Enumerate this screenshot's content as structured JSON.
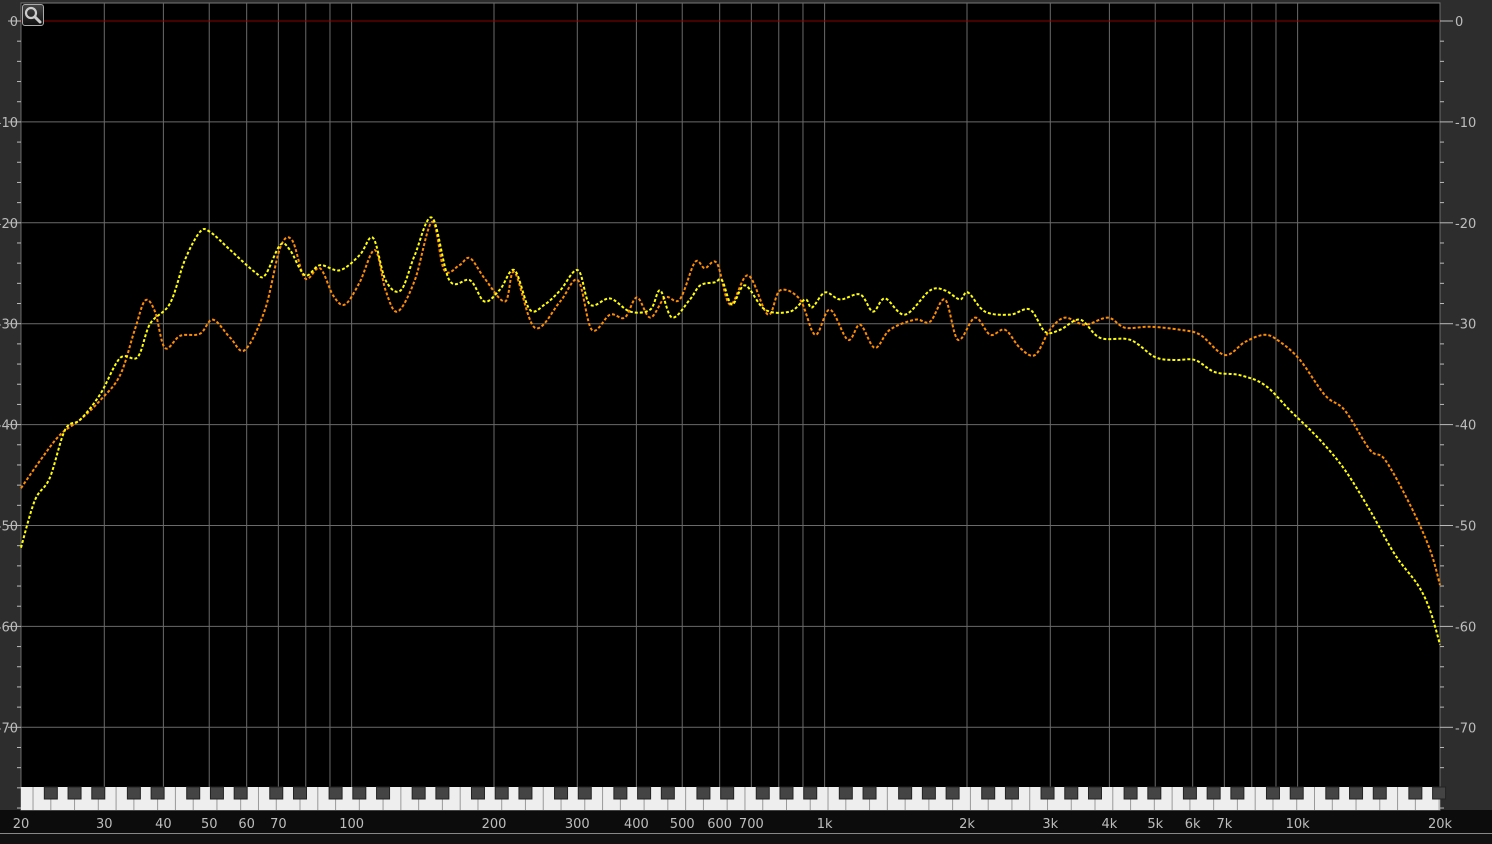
{
  "chart_data": {
    "type": "line",
    "title": "",
    "xlabel": "",
    "ylabel": "",
    "x_scale": "log",
    "xlim": [
      20,
      20000
    ],
    "ylim": [
      -78,
      1
    ],
    "grid": true,
    "reference_line_db": 0,
    "x_ticks": [
      {
        "value": 20,
        "label": "20"
      },
      {
        "value": 30,
        "label": "30"
      },
      {
        "value": 40,
        "label": "40"
      },
      {
        "value": 50,
        "label": "50"
      },
      {
        "value": 60,
        "label": "60"
      },
      {
        "value": 70,
        "label": "70"
      },
      {
        "value": 100,
        "label": "100"
      },
      {
        "value": 200,
        "label": "200"
      },
      {
        "value": 300,
        "label": "300"
      },
      {
        "value": 400,
        "label": "400"
      },
      {
        "value": 500,
        "label": "500"
      },
      {
        "value": 600,
        "label": "600"
      },
      {
        "value": 700,
        "label": "700"
      },
      {
        "value": 1000,
        "label": "1k"
      },
      {
        "value": 2000,
        "label": "2k"
      },
      {
        "value": 3000,
        "label": "3k"
      },
      {
        "value": 4000,
        "label": "4k"
      },
      {
        "value": 5000,
        "label": "5k"
      },
      {
        "value": 6000,
        "label": "6k"
      },
      {
        "value": 7000,
        "label": "7k"
      },
      {
        "value": 10000,
        "label": "10k"
      },
      {
        "value": 20000,
        "label": "20k"
      }
    ],
    "x_grid": [
      20,
      30,
      40,
      50,
      60,
      70,
      80,
      90,
      100,
      200,
      300,
      400,
      500,
      600,
      700,
      800,
      900,
      1000,
      2000,
      3000,
      4000,
      5000,
      6000,
      7000,
      8000,
      9000,
      10000,
      20000
    ],
    "y_ticks": [
      {
        "value": 0,
        "label": "0"
      },
      {
        "value": -10,
        "label": "-10"
      },
      {
        "value": -20,
        "label": "-20"
      },
      {
        "value": -30,
        "label": "-30"
      },
      {
        "value": -40,
        "label": "-40"
      },
      {
        "value": -50,
        "label": "-50"
      },
      {
        "value": -60,
        "label": "-60"
      },
      {
        "value": -70,
        "label": "-70"
      }
    ],
    "series": [
      {
        "color": "#ff8c00",
        "x": [
          20,
          22,
          24.2,
          26.7,
          29.4,
          32.4,
          34.8,
          36.6,
          38.4,
          40.3,
          43.4,
          47.8,
          50.9,
          55.4,
          59.5,
          65.6,
          70.6,
          74.8,
          79.7,
          85.7,
          91.4,
          96.8,
          104,
          112,
          118,
          125,
          136,
          148,
          157,
          169,
          178,
          191,
          211,
          221,
          244,
          276,
          301,
          322,
          352,
          378,
          401,
          428,
          460,
          494,
          532,
          558,
          592,
          631,
          689,
          759,
          805,
          887,
          955,
          1026,
          1120,
          1189,
          1277,
          1374,
          1553,
          1671,
          1797,
          1914,
          2080,
          2239,
          2407,
          2589,
          2786,
          2995,
          3222,
          3549,
          3974,
          4316,
          4876,
          5637,
          6223,
          7016,
          7745,
          8531,
          9182,
          10120,
          11430,
          12590,
          14220,
          15310,
          17310,
          19050,
          20000
        ],
        "y": [
          -46.3,
          -43.5,
          -41,
          -39.5,
          -37.6,
          -35.1,
          -30.6,
          -27.7,
          -28.8,
          -32.4,
          -31.2,
          -31,
          -29.6,
          -31.4,
          -32.6,
          -28.6,
          -22.5,
          -21.7,
          -25.5,
          -24.5,
          -27.2,
          -28.1,
          -25.9,
          -22.7,
          -26.7,
          -28.8,
          -25.7,
          -19.9,
          -24.7,
          -24.2,
          -23.5,
          -25.5,
          -27.8,
          -24.9,
          -30.4,
          -27.8,
          -25.7,
          -30.6,
          -29.1,
          -29.4,
          -27.4,
          -29.4,
          -27.4,
          -27.6,
          -23.9,
          -24.5,
          -24,
          -28.1,
          -25.2,
          -29.1,
          -26.7,
          -27.6,
          -31.1,
          -28.6,
          -31.6,
          -30.1,
          -32.4,
          -30.6,
          -29.6,
          -29.8,
          -27.6,
          -31.6,
          -29.4,
          -31.1,
          -30.6,
          -32.4,
          -33.1,
          -30.6,
          -29.4,
          -30.1,
          -29.4,
          -30.4,
          -30.3,
          -30.6,
          -31.1,
          -33.1,
          -31.8,
          -31.1,
          -31.8,
          -33.6,
          -37.1,
          -38.6,
          -42.5,
          -43.5,
          -48,
          -52.4,
          -55.9
        ]
      },
      {
        "color": "#ffff00",
        "x": [
          20,
          21.4,
          23,
          24.8,
          26.7,
          29.4,
          32.4,
          35.3,
          37.5,
          41.3,
          44.4,
          47.8,
          50.2,
          55.4,
          62.5,
          65.6,
          70.6,
          74.1,
          79.7,
          85.7,
          94.5,
          104,
          111,
          118,
          127,
          136,
          148,
          161,
          178,
          191,
          206,
          221,
          238,
          256,
          276,
          301,
          319,
          352,
          388,
          428,
          449,
          476,
          519,
          546,
          586,
          607,
          637,
          679,
          748,
          845,
          910,
          940,
          1002,
          1079,
          1189,
          1265,
          1342,
          1479,
          1671,
          1797,
          1932,
          2009,
          2183,
          2467,
          2718,
          2925,
          3148,
          3469,
          3822,
          4426,
          4993,
          5508,
          6069,
          6685,
          7552,
          8531,
          9638,
          11140,
          12590,
          14220,
          16070,
          17960,
          19050,
          20000
        ],
        "y": [
          -52.2,
          -47.5,
          -45.3,
          -40.5,
          -39.5,
          -37,
          -33.4,
          -33.3,
          -30,
          -28,
          -23.7,
          -20.9,
          -20.9,
          -22.7,
          -24.9,
          -25.2,
          -22.2,
          -22.7,
          -25.2,
          -24.2,
          -24.7,
          -23.2,
          -21.5,
          -25.7,
          -26.7,
          -23.2,
          -19.5,
          -25.7,
          -25.7,
          -27.8,
          -26.6,
          -24.7,
          -28.6,
          -28.1,
          -26.7,
          -24.7,
          -28.1,
          -27.5,
          -28.8,
          -28.6,
          -26.7,
          -29.4,
          -27.6,
          -26.2,
          -25.9,
          -25.7,
          -28.1,
          -26.2,
          -28.6,
          -28.8,
          -27.6,
          -28.4,
          -26.9,
          -27.6,
          -27.1,
          -28.8,
          -27.5,
          -29.1,
          -26.7,
          -26.7,
          -27.6,
          -26.9,
          -28.8,
          -29.1,
          -28.6,
          -30.8,
          -30.6,
          -29.6,
          -31.4,
          -31.6,
          -33.3,
          -33.6,
          -33.6,
          -34.8,
          -35.1,
          -36.1,
          -38.6,
          -41.5,
          -44.5,
          -48.5,
          -52.9,
          -55.9,
          -58.4,
          -61.8
        ]
      }
    ],
    "colors": {
      "background": "#000000",
      "frame": "#2d2d2d",
      "grid": "#6a6a6a",
      "reference_line": "#8b0000",
      "axis_text": "#bdbdbd"
    },
    "icons": {
      "zoom": "magnifier-icon"
    }
  }
}
